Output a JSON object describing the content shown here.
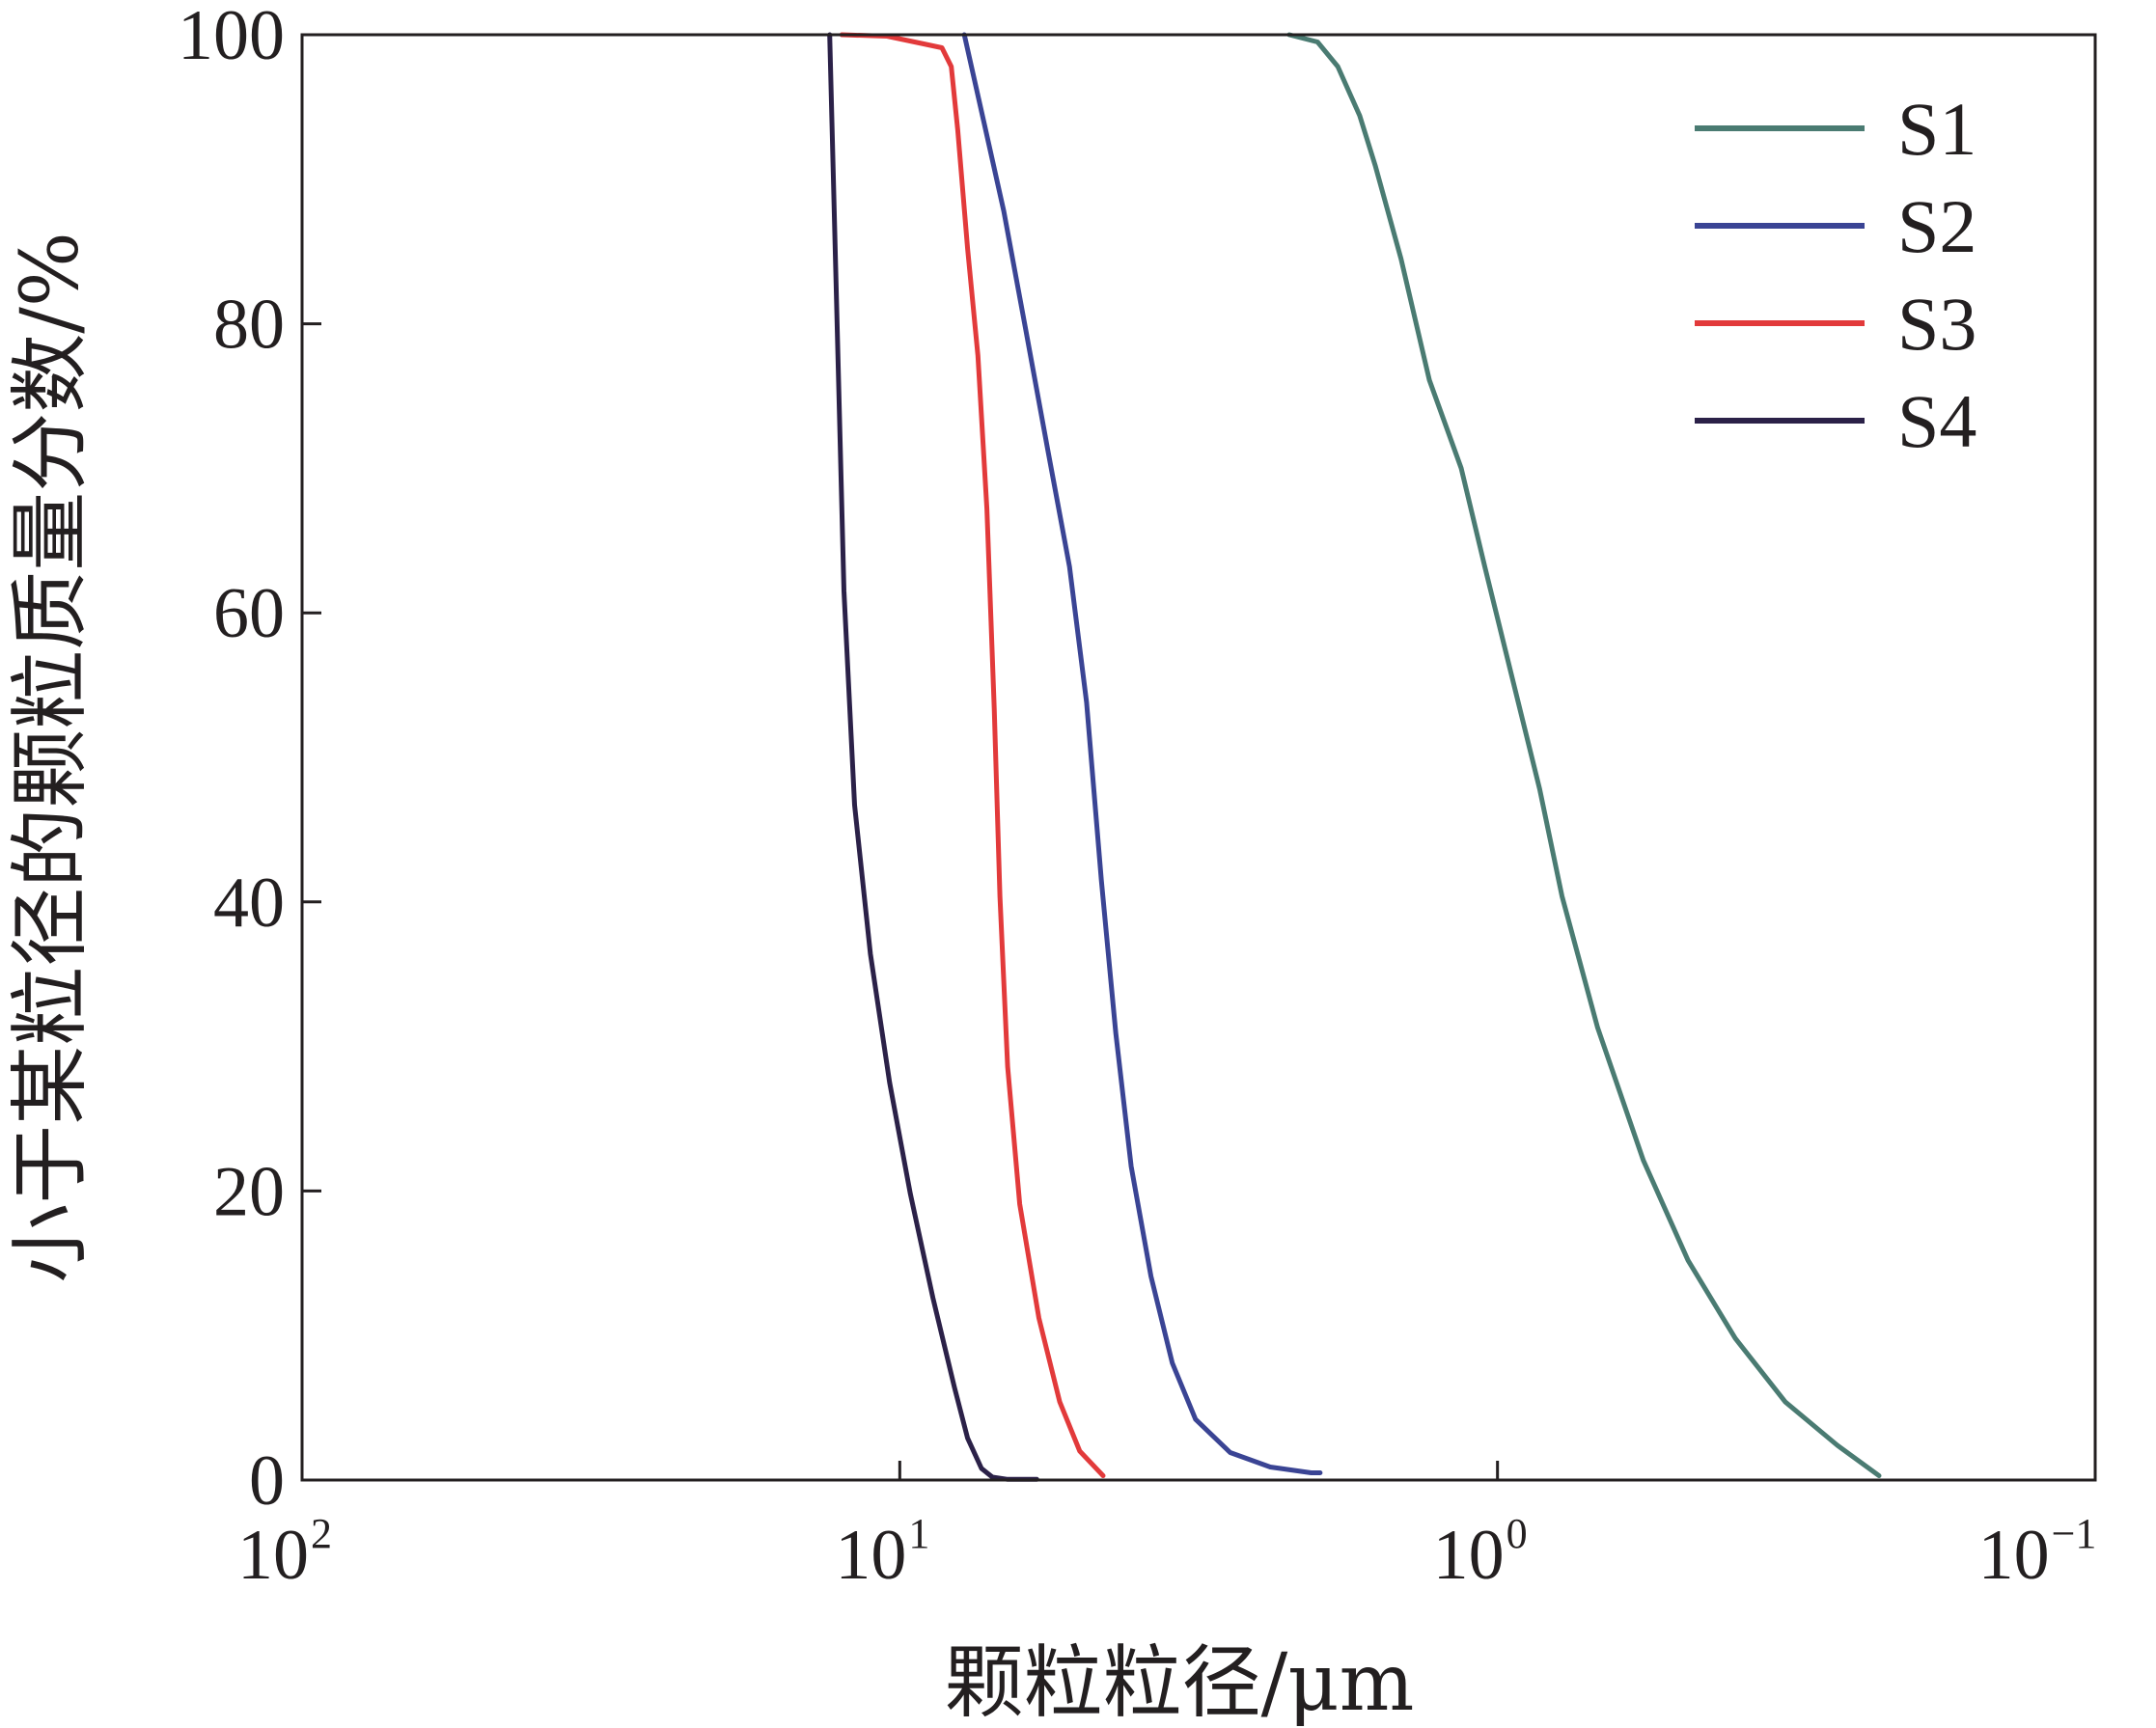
{
  "chart_data": {
    "type": "line",
    "xlabel": "颗粒粒径/μm",
    "ylabel": "小于某粒径的颗粒质量分数/%",
    "x_scale": "log",
    "x_reversed": true,
    "xlim": [
      100,
      0.1
    ],
    "ylim": [
      0,
      100
    ],
    "xticks": [
      {
        "base": "10",
        "exp": "2",
        "value": 100
      },
      {
        "base": "10",
        "exp": "1",
        "value": 10
      },
      {
        "base": "10",
        "exp": "0",
        "value": 1
      },
      {
        "base": "10",
        "exp": "−1",
        "value": 0.1
      }
    ],
    "yticks": [
      "0",
      "20",
      "40",
      "60",
      "80",
      "100"
    ],
    "legend_position": "top-right",
    "grid": false,
    "series": [
      {
        "name": "S1",
        "color": "#4a7b72",
        "points": [
          [
            2.23,
            100
          ],
          [
            2.0,
            99.5
          ],
          [
            1.85,
            97.8
          ],
          [
            1.7,
            94.4
          ],
          [
            1.6,
            90.9
          ],
          [
            1.45,
            84.5
          ],
          [
            1.3,
            76.1
          ],
          [
            1.15,
            70
          ],
          [
            1.05,
            63.2
          ],
          [
            0.97,
            57.4
          ],
          [
            0.85,
            47.8
          ],
          [
            0.78,
            40.4
          ],
          [
            0.68,
            31.3
          ],
          [
            0.57,
            22.1
          ],
          [
            0.48,
            15.2
          ],
          [
            0.4,
            9.8
          ],
          [
            0.33,
            5.4
          ],
          [
            0.27,
            2.4
          ],
          [
            0.23,
            0.3
          ]
        ]
      },
      {
        "name": "S2",
        "color": "#3a4494",
        "points": [
          [
            7.8,
            100
          ],
          [
            7.2,
            93.6
          ],
          [
            6.7,
            87.8
          ],
          [
            6.15,
            79.5
          ],
          [
            5.65,
            71.2
          ],
          [
            5.2,
            63.2
          ],
          [
            4.87,
            53.8
          ],
          [
            4.6,
            41.5
          ],
          [
            4.35,
            30.9
          ],
          [
            4.1,
            21.7
          ],
          [
            3.8,
            14.1
          ],
          [
            3.5,
            8.1
          ],
          [
            3.2,
            4.2
          ],
          [
            2.8,
            1.9
          ],
          [
            2.4,
            0.9
          ],
          [
            2.05,
            0.5
          ],
          [
            1.98,
            0.5
          ]
        ]
      },
      {
        "name": "S3",
        "color": "#e23a3b",
        "points": [
          [
            12.5,
            100
          ],
          [
            10.5,
            99.9
          ],
          [
            9.2,
            99.4
          ],
          [
            8.5,
            99.1
          ],
          [
            8.2,
            97.8
          ],
          [
            8.0,
            93.4
          ],
          [
            7.7,
            85.2
          ],
          [
            7.4,
            77.8
          ],
          [
            7.15,
            67.2
          ],
          [
            6.95,
            53.4
          ],
          [
            6.8,
            40.4
          ],
          [
            6.6,
            28.6
          ],
          [
            6.3,
            19.1
          ],
          [
            5.85,
            11.2
          ],
          [
            5.4,
            5.4
          ],
          [
            5.0,
            2.0
          ],
          [
            4.57,
            0.3
          ]
        ]
      },
      {
        "name": "S4",
        "color": "#2b2148",
        "points": [
          [
            13.1,
            100
          ],
          [
            12.8,
            83.9
          ],
          [
            12.4,
            61.5
          ],
          [
            11.9,
            46.7
          ],
          [
            11.2,
            36.4
          ],
          [
            10.4,
            27.5
          ],
          [
            9.6,
            19.8
          ],
          [
            8.8,
            12.6
          ],
          [
            8.1,
            6.4
          ],
          [
            7.7,
            2.9
          ],
          [
            7.3,
            0.8
          ],
          [
            7.0,
            0.2
          ],
          [
            6.6,
            0.05
          ],
          [
            5.9,
            0.05
          ]
        ]
      }
    ]
  }
}
